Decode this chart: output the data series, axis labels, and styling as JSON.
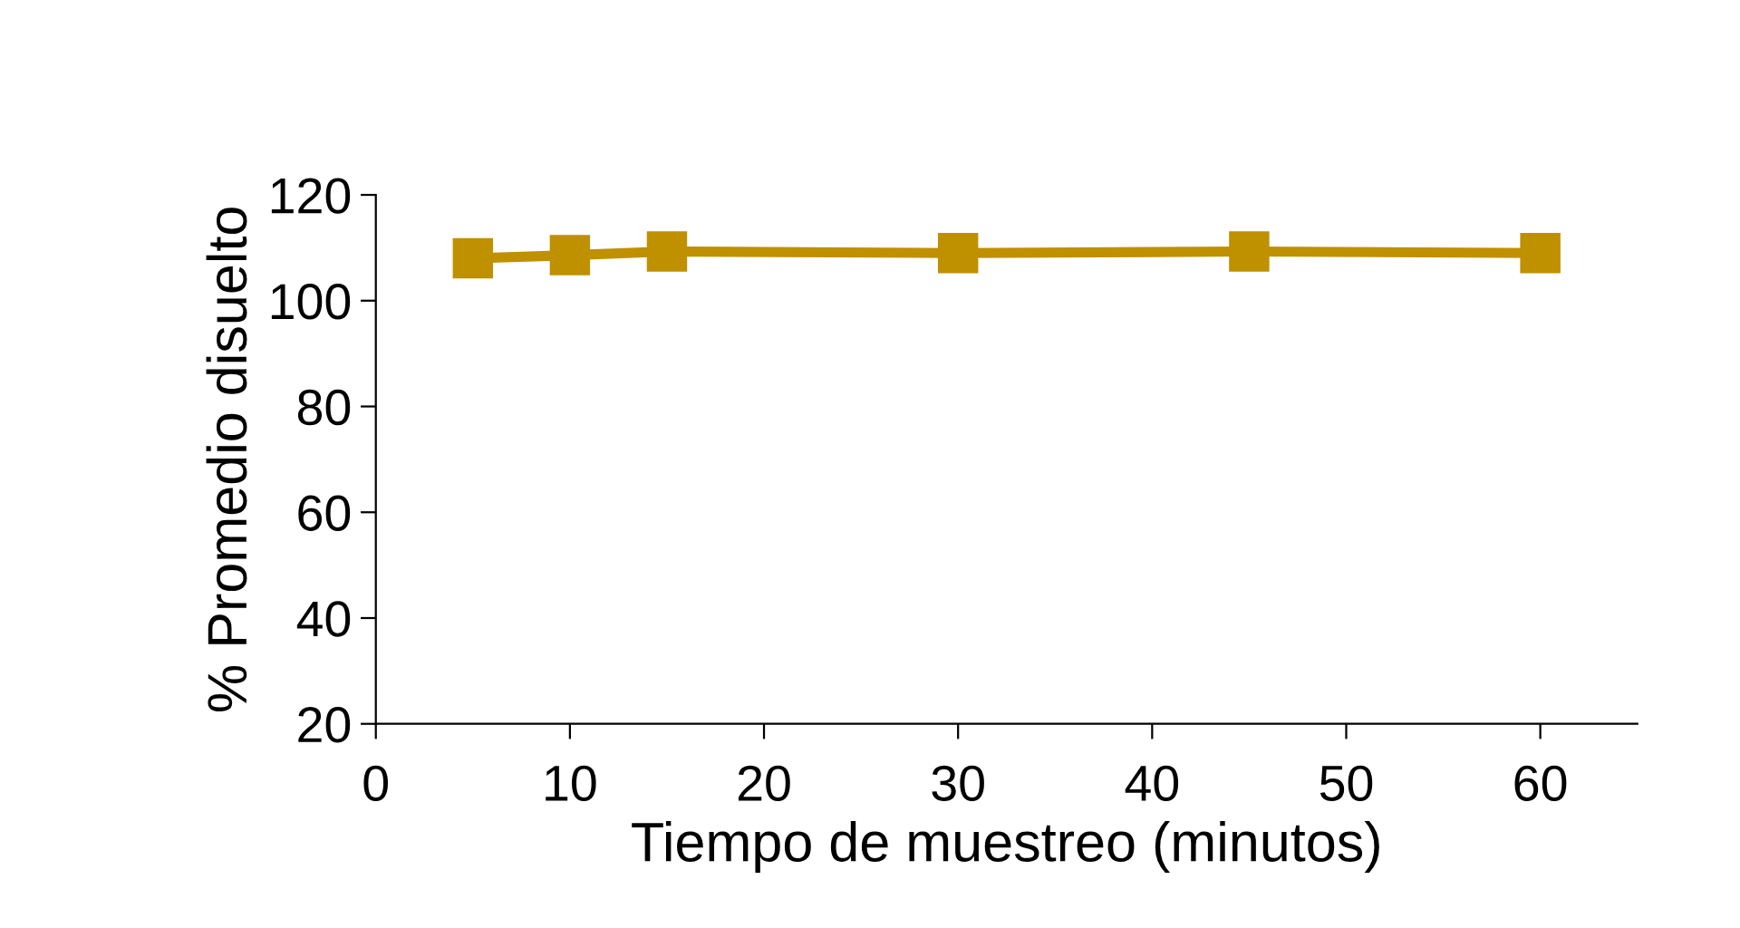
{
  "chart_data": {
    "type": "line",
    "xlabel": "Tiempo de muestreo (minutos)",
    "ylabel": "% Promedio disuelto",
    "x": [
      5,
      10,
      15,
      30,
      45,
      60
    ],
    "series": [
      {
        "color": "#bf9000",
        "values": [
          108,
          108.6,
          109.3,
          109,
          109.3,
          109
        ]
      }
    ],
    "xlim": [
      0,
      65
    ],
    "xticks": [
      0,
      10,
      20,
      30,
      40,
      50,
      60
    ],
    "ylim": [
      20,
      120
    ],
    "yticks": [
      20,
      40,
      60,
      80,
      100,
      120
    ],
    "marker": "square",
    "line_style": "solid",
    "grid": false,
    "legend": false
  }
}
